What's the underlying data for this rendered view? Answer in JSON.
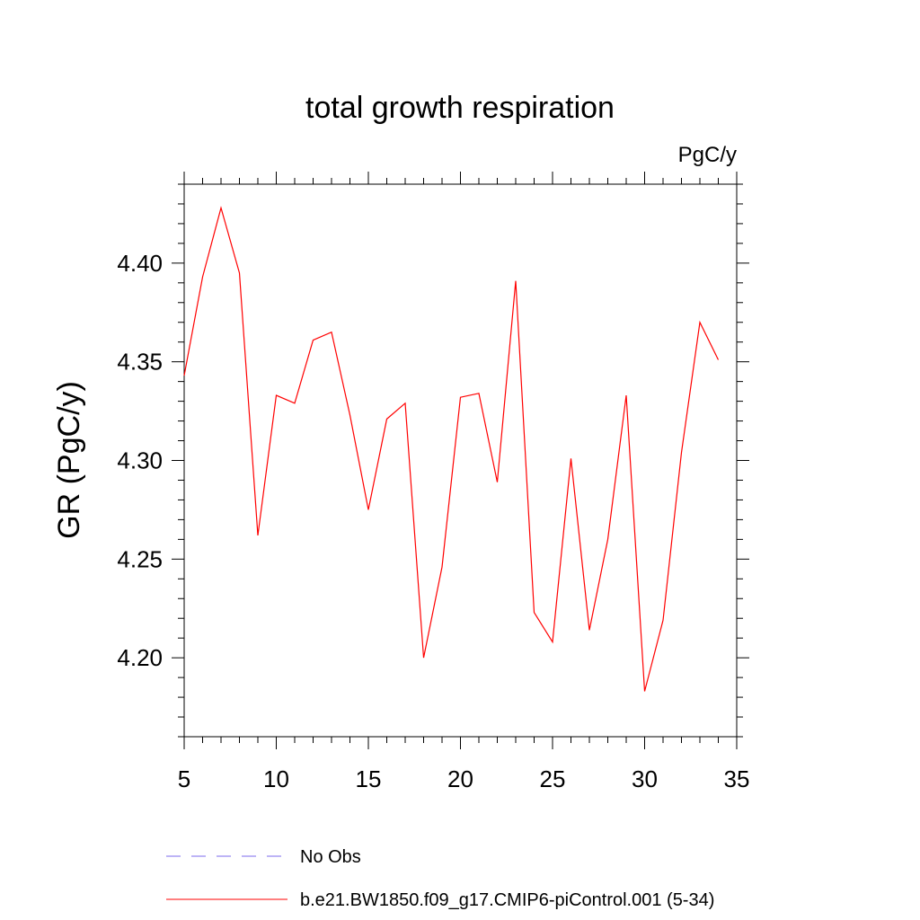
{
  "chart_data": {
    "type": "line",
    "title": "total growth respiration",
    "units_label": "PgC/y",
    "ylabel": "GR  (PgC/y)",
    "xlabel": "",
    "xlim": [
      5,
      35
    ],
    "ylim": [
      4.16,
      4.44
    ],
    "x_ticks": [
      5,
      10,
      15,
      20,
      25,
      30,
      35
    ],
    "x_tick_labels": [
      "5",
      "10",
      "15",
      "20",
      "25",
      "30",
      "35"
    ],
    "y_ticks": [
      4.2,
      4.25,
      4.3,
      4.35,
      4.4
    ],
    "y_tick_labels": [
      "4.20",
      "4.25",
      "4.30",
      "4.35",
      "4.40"
    ],
    "grid": false,
    "series": [
      {
        "name": "b.e21.BW1850.f09_g17.CMIP6-piControl.001 (5-34)",
        "color": "#ff0000",
        "style": "solid",
        "x": [
          5,
          6,
          7,
          8,
          9,
          10,
          11,
          12,
          13,
          14,
          15,
          16,
          17,
          18,
          19,
          20,
          21,
          22,
          23,
          24,
          25,
          26,
          27,
          28,
          29,
          30,
          31,
          32,
          33,
          34
        ],
        "values": [
          4.343,
          4.393,
          4.428,
          4.395,
          4.262,
          4.333,
          4.329,
          4.361,
          4.365,
          4.323,
          4.275,
          4.321,
          4.329,
          4.2,
          4.246,
          4.332,
          4.334,
          4.289,
          4.391,
          4.223,
          4.208,
          4.301,
          4.214,
          4.26,
          4.333,
          4.183,
          4.219,
          4.304,
          4.37,
          4.351
        ]
      }
    ],
    "legend": [
      {
        "label": "No Obs",
        "color": "#7b68ee",
        "style": "dashed"
      },
      {
        "label": "b.e21.BW1850.f09_g17.CMIP6-piControl.001 (5-34)",
        "color": "#ff0000",
        "style": "solid"
      }
    ],
    "legend_position": "bottom"
  }
}
